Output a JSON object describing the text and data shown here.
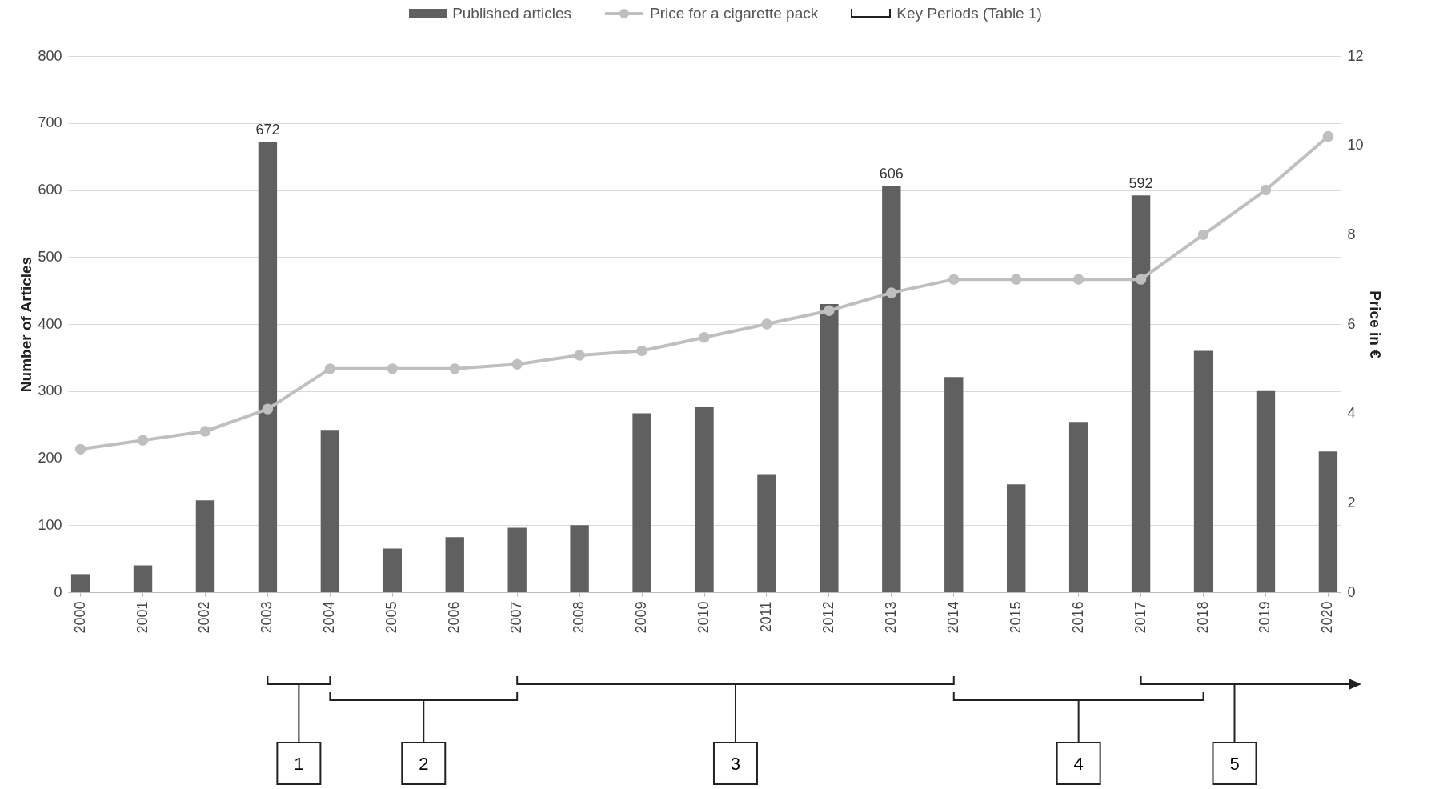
{
  "chart_data": {
    "type": "bar",
    "ylabel": "Number of Articles",
    "y2label": "Price in €",
    "categories": [
      "2000",
      "2001",
      "2002",
      "2003",
      "2004",
      "2005",
      "2006",
      "2007",
      "2008",
      "2009",
      "2010",
      "2011",
      "2012",
      "2013",
      "2014",
      "2015",
      "2016",
      "2017",
      "2018",
      "2019",
      "2020"
    ],
    "series": [
      {
        "name": "Published articles",
        "color": "#606060",
        "values": [
          27,
          40,
          137,
          672,
          242,
          65,
          82,
          96,
          100,
          267,
          277,
          176,
          430,
          606,
          321,
          161,
          254,
          592,
          360,
          300,
          210
        ],
        "value_labels": [
          null,
          null,
          null,
          "672",
          null,
          null,
          null,
          null,
          null,
          null,
          null,
          null,
          null,
          "606",
          null,
          null,
          null,
          "592",
          null,
          null,
          null
        ]
      },
      {
        "name": "Price for a cigarette pack",
        "type": "line",
        "axis": "y2",
        "color": "#bfbfbf",
        "marker": "circle",
        "values": [
          3.2,
          3.4,
          3.6,
          4.1,
          5.0,
          5.0,
          5.0,
          5.1,
          5.3,
          5.4,
          5.7,
          6.0,
          6.3,
          6.7,
          7.0,
          7.0,
          7.0,
          7.0,
          8.0,
          9.0,
          10.2
        ]
      }
    ],
    "ylim": [
      0,
      800
    ],
    "yticks": [
      0,
      100,
      200,
      300,
      400,
      500,
      600,
      700,
      800
    ],
    "y2lim": [
      0,
      12
    ],
    "y2ticks": [
      0,
      2,
      4,
      6,
      8,
      10,
      12
    ],
    "grid": "y",
    "legend": "top",
    "annotations": [
      "Key Periods (Table 1)",
      "1",
      "2",
      "3",
      "4",
      "5"
    ]
  }
}
